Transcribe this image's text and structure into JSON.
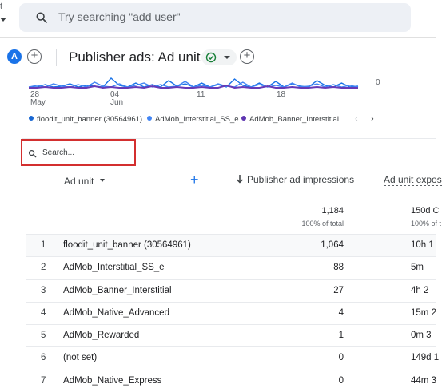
{
  "topbar": {
    "edge_text": "t",
    "search_placeholder": "Try searching \"add user\""
  },
  "report": {
    "avatar_letter": "A",
    "title": "Publisher ads: Ad unit"
  },
  "chart_data": {
    "type": "line",
    "y_visible_tick": "0",
    "x_ticks": [
      {
        "day": "28",
        "month": "May"
      },
      {
        "day": "04",
        "month": "Jun"
      },
      {
        "day": "11",
        "month": ""
      },
      {
        "day": "18",
        "month": ""
      }
    ],
    "series": [
      {
        "name": "floodit_unit_banner (30564961)",
        "color": "#1a73e8"
      },
      {
        "name": "AdMob_Interstitial_SS_e",
        "color": "#4285f4"
      },
      {
        "name": "AdMob_Banner_Interstitial",
        "color": "#673ab7"
      }
    ]
  },
  "legend": {
    "items": [
      {
        "label": "floodit_unit_banner (30564961)",
        "color": "#1967d2"
      },
      {
        "label": "AdMob_Interstitial_SS_e",
        "color": "#4285f4"
      },
      {
        "label": "AdMob_Banner_Interstitial",
        "color": "#5e35b1"
      }
    ],
    "prev": "‹",
    "next": "›"
  },
  "table": {
    "search_placeholder": "Search...",
    "dimension_header": "Ad unit",
    "add_label": "+",
    "metric1_header": "Publisher ad impressions",
    "metric2_header": "Ad unit expos",
    "totals": {
      "metric1": "1,184",
      "metric1_sub": "100% of total",
      "metric2": "150d C",
      "metric2_sub": "100% of t"
    },
    "rows": [
      {
        "n": "1",
        "name": "floodit_unit_banner (30564961)",
        "impressions": "1,064",
        "exposure": "10h 1"
      },
      {
        "n": "2",
        "name": "AdMob_Interstitial_SS_e",
        "impressions": "88",
        "exposure": "5m"
      },
      {
        "n": "3",
        "name": "AdMob_Banner_Interstitial",
        "impressions": "27",
        "exposure": "4h 2"
      },
      {
        "n": "4",
        "name": "AdMob_Native_Advanced",
        "impressions": "4",
        "exposure": "15m 2"
      },
      {
        "n": "5",
        "name": "AdMob_Rewarded",
        "impressions": "1",
        "exposure": "0m 3"
      },
      {
        "n": "6",
        "name": "(not set)",
        "impressions": "0",
        "exposure": "149d 1"
      },
      {
        "n": "7",
        "name": "AdMob_Native_Express",
        "impressions": "0",
        "exposure": "44m 3"
      }
    ]
  }
}
